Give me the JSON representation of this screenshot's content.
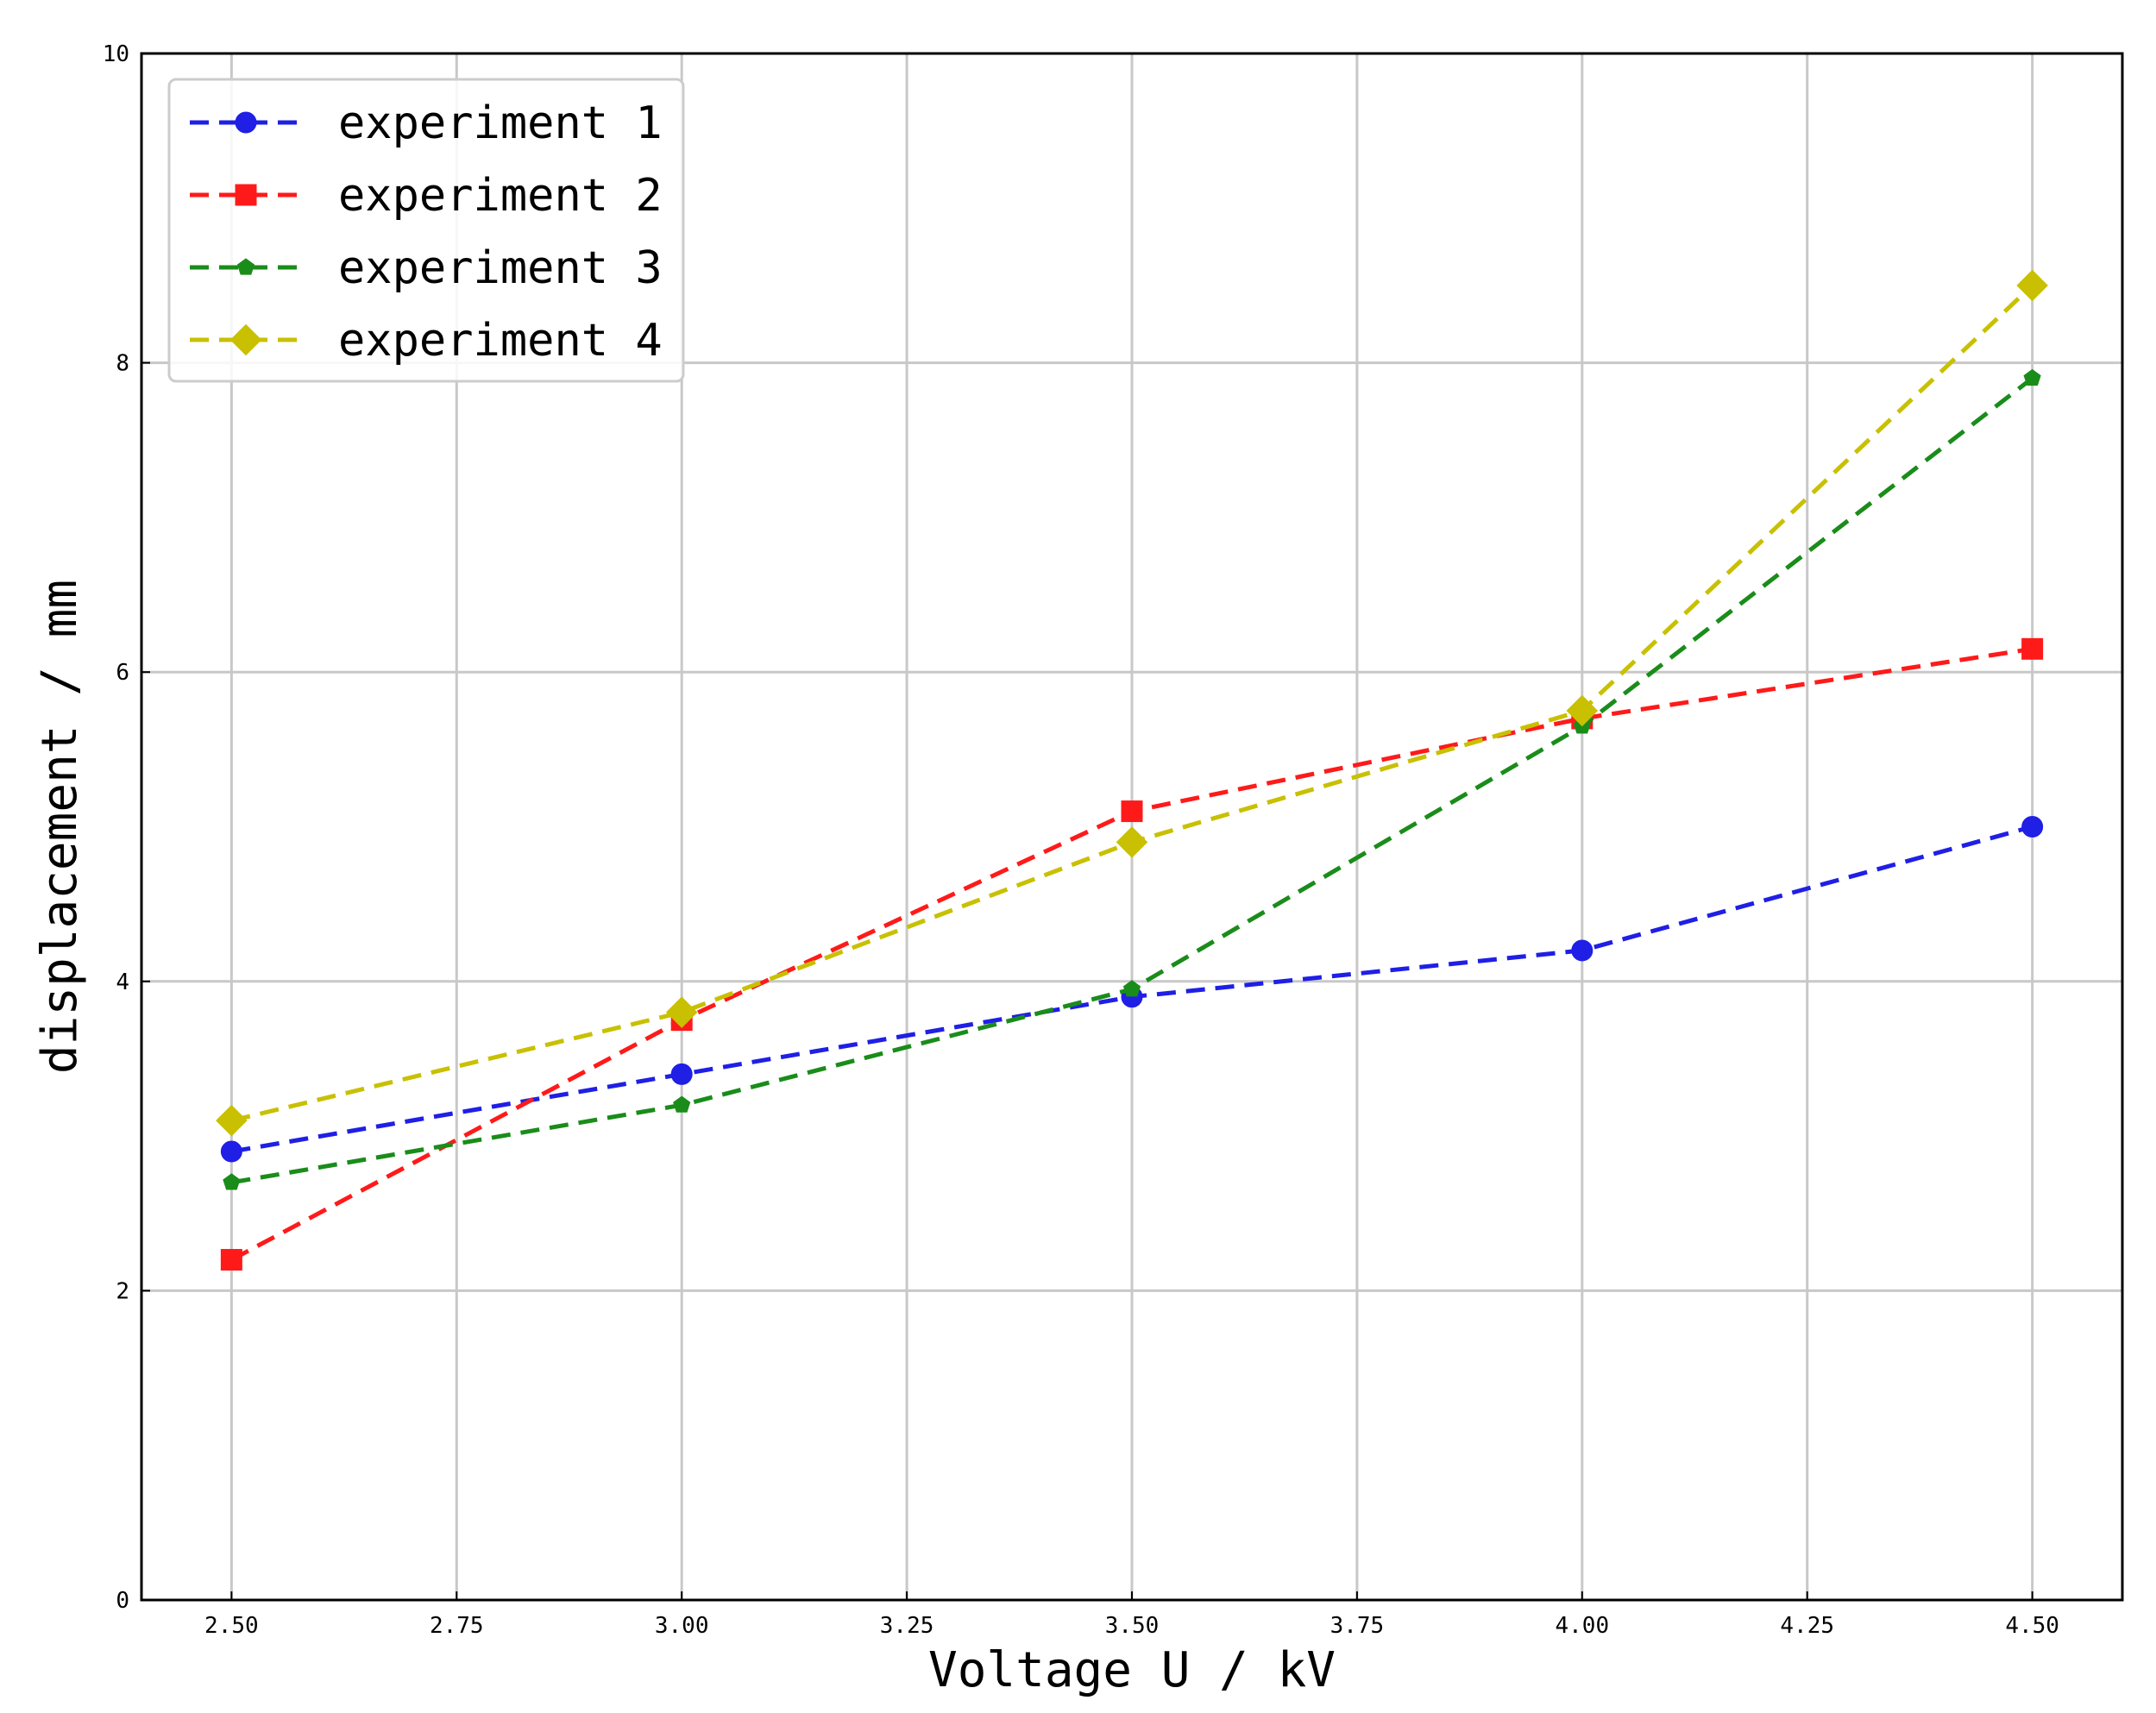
{
  "chart_data": {
    "type": "line",
    "title": "",
    "xlabel": "Voltage U / kV",
    "ylabel": "displacement / mm",
    "xlim": [
      2.4,
      4.6
    ],
    "ylim": [
      0,
      10
    ],
    "xticks": [
      2.5,
      2.75,
      3.0,
      3.25,
      3.5,
      3.75,
      4.0,
      4.25,
      4.5
    ],
    "xtick_labels": [
      "2.50",
      "2.75",
      "3.00",
      "3.25",
      "3.50",
      "3.75",
      "4.00",
      "4.25",
      "4.50"
    ],
    "yticks": [
      0,
      2,
      4,
      6,
      8,
      10
    ],
    "ytick_labels": [
      "0",
      "2",
      "4",
      "6",
      "8",
      "10"
    ],
    "grid": true,
    "legend_position": "top-left",
    "x": [
      2.5,
      3.0,
      3.5,
      4.0,
      4.5
    ],
    "series": [
      {
        "name": "experiment 1",
        "values": [
          2.9,
          3.4,
          3.9,
          4.2,
          5.0
        ],
        "color": "#1f1fe6",
        "marker": "circle"
      },
      {
        "name": "experiment 2",
        "values": [
          2.2,
          3.75,
          5.1,
          5.7,
          6.15
        ],
        "color": "#ff1a1a",
        "marker": "square"
      },
      {
        "name": "experiment 3",
        "values": [
          2.7,
          3.2,
          3.95,
          5.65,
          7.9
        ],
        "color": "#1a8c1a",
        "marker": "pentagon"
      },
      {
        "name": "experiment 4",
        "values": [
          3.1,
          3.8,
          4.9,
          5.75,
          8.5
        ],
        "color": "#c8c000",
        "marker": "diamond"
      }
    ]
  }
}
